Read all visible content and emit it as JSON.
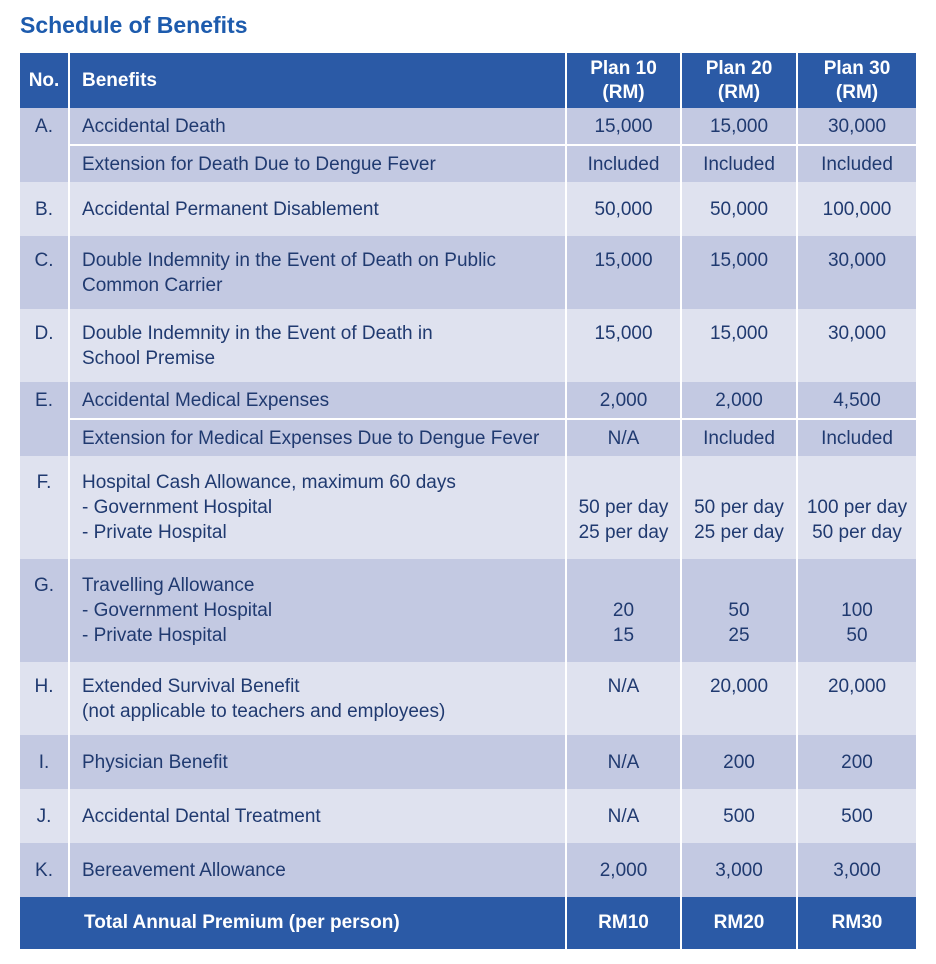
{
  "title": "Schedule of Benefits",
  "colors": {
    "header_blue": "#2b5aa6",
    "row_dark": "#c3c9e2",
    "row_light": "#dfe2ef",
    "text_navy": "#203a70",
    "title_blue": "#1d5bad",
    "divider_white": "#ffffff"
  },
  "table": {
    "headers": {
      "no": "No.",
      "benefits": "Benefits",
      "plans": [
        [
          "Plan 10",
          "(RM)"
        ],
        [
          "Plan 20",
          "(RM)"
        ],
        [
          "Plan 30",
          "(RM)"
        ]
      ]
    },
    "rows": [
      {
        "no": "A.",
        "shade": "dark",
        "subs": [
          {
            "benefit": [
              "Accidental Death"
            ],
            "values": [
              [
                "15,000"
              ],
              [
                "15,000"
              ],
              [
                "30,000"
              ]
            ]
          },
          {
            "benefit": [
              "Extension for Death Due to Dengue Fever"
            ],
            "values": [
              [
                "Included"
              ],
              [
                "Included"
              ],
              [
                "Included"
              ]
            ]
          }
        ]
      },
      {
        "no": "B.",
        "shade": "light",
        "subs": [
          {
            "benefit": [
              "Accidental Permanent Disablement"
            ],
            "values": [
              [
                "50,000"
              ],
              [
                "50,000"
              ],
              [
                "100,000"
              ]
            ]
          }
        ]
      },
      {
        "no": "C.",
        "shade": "dark",
        "subs": [
          {
            "benefit": [
              "Double Indemnity in the Event of Death on Public",
              "Common Carrier"
            ],
            "values": [
              [
                "15,000"
              ],
              [
                "15,000"
              ],
              [
                "30,000"
              ]
            ]
          }
        ]
      },
      {
        "no": "D.",
        "shade": "light",
        "subs": [
          {
            "benefit": [
              "Double Indemnity in the Event of Death in",
              "School Premise"
            ],
            "values": [
              [
                "15,000"
              ],
              [
                "15,000"
              ],
              [
                "30,000"
              ]
            ]
          }
        ]
      },
      {
        "no": "E.",
        "shade": "dark",
        "subs": [
          {
            "benefit": [
              "Accidental Medical Expenses"
            ],
            "values": [
              [
                "2,000"
              ],
              [
                "2,000"
              ],
              [
                "4,500"
              ]
            ]
          },
          {
            "benefit": [
              "Extension for Medical Expenses Due to Dengue Fever"
            ],
            "values": [
              [
                "N/A"
              ],
              [
                "Included"
              ],
              [
                "Included"
              ]
            ]
          }
        ]
      },
      {
        "no": "F.",
        "shade": "light",
        "subs": [
          {
            "benefit": [
              "Hospital Cash Allowance, maximum 60 days",
              "- Government Hospital",
              "- Private Hospital"
            ],
            "values": [
              [
                "",
                "50 per day",
                "25 per day"
              ],
              [
                "",
                "50 per day",
                "25 per day"
              ],
              [
                "",
                "100 per day",
                "50 per day"
              ]
            ]
          }
        ]
      },
      {
        "no": "G.",
        "shade": "dark",
        "subs": [
          {
            "benefit": [
              "Travelling Allowance",
              "- Government Hospital",
              "- Private Hospital"
            ],
            "values": [
              [
                "",
                "20",
                "15"
              ],
              [
                "",
                "50",
                "25"
              ],
              [
                "",
                "100",
                "50"
              ]
            ]
          }
        ]
      },
      {
        "no": "H.",
        "shade": "light",
        "subs": [
          {
            "benefit": [
              "Extended Survival Benefit",
              "(not applicable to teachers and employees)"
            ],
            "values": [
              [
                "N/A"
              ],
              [
                "20,000"
              ],
              [
                "20,000"
              ]
            ]
          }
        ]
      },
      {
        "no": "I.",
        "shade": "dark",
        "subs": [
          {
            "benefit": [
              "Physician Benefit"
            ],
            "values": [
              [
                "N/A"
              ],
              [
                "200"
              ],
              [
                "200"
              ]
            ]
          }
        ]
      },
      {
        "no": "J.",
        "shade": "light",
        "subs": [
          {
            "benefit": [
              "Accidental Dental Treatment"
            ],
            "values": [
              [
                "N/A"
              ],
              [
                "500"
              ],
              [
                "500"
              ]
            ]
          }
        ]
      },
      {
        "no": "K.",
        "shade": "dark",
        "subs": [
          {
            "benefit": [
              "Bereavement Allowance"
            ],
            "values": [
              [
                "2,000"
              ],
              [
                "3,000"
              ],
              [
                "3,000"
              ]
            ]
          }
        ]
      }
    ],
    "footer": {
      "label": "Total Annual Premium (per person)",
      "values": [
        "RM10",
        "RM20",
        "RM30"
      ]
    }
  }
}
